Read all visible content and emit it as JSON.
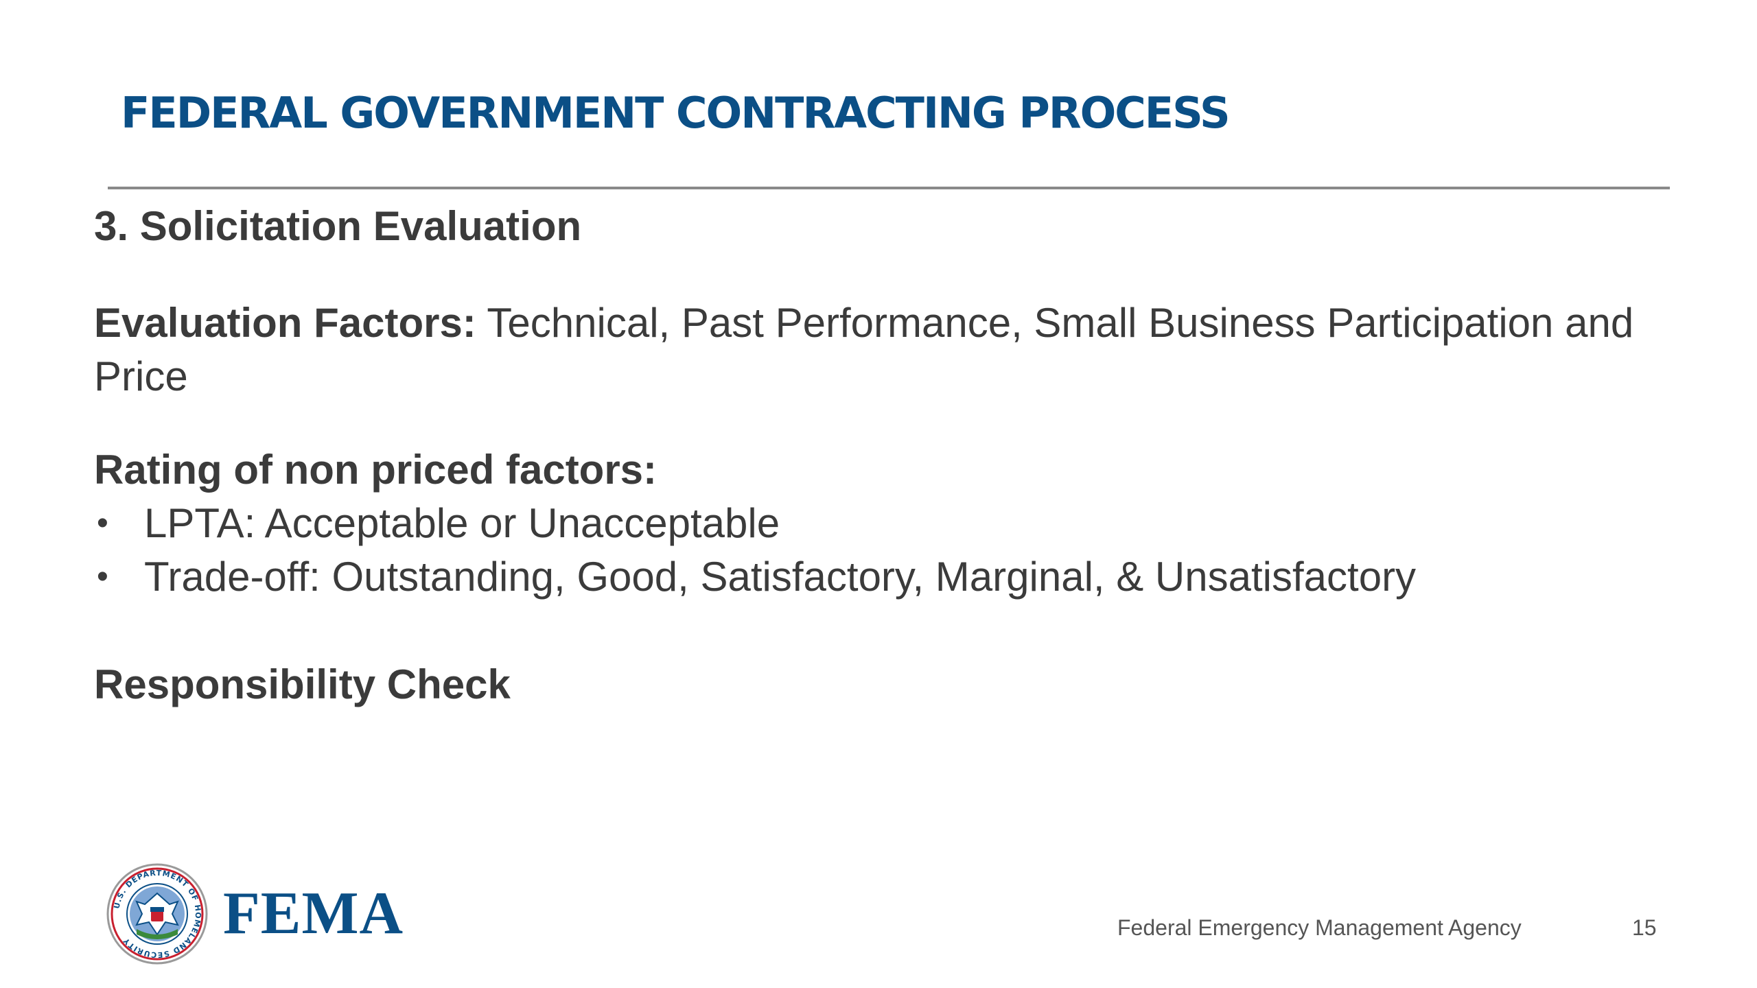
{
  "slide": {
    "title": "FEDERAL GOVERNMENT CONTRACTING PROCESS",
    "section_heading": "3. Solicitation Evaluation",
    "evaluation_factors": {
      "label": "Evaluation Factors:",
      "text": " Technical, Past Performance, Small Business Participation and Price"
    },
    "rating": {
      "heading": "Rating of non priced factors:",
      "bullets": [
        "LPTA: Acceptable or Unacceptable",
        "Trade-off: Outstanding, Good, Satisfactory, Marginal, & Unsatisfactory"
      ]
    },
    "responsibility": "Responsibility Check"
  },
  "footer": {
    "logo_text": "FEMA",
    "seal_text": "U.S. DEPARTMENT OF HOMELAND SECURITY",
    "agency": "Federal Emergency Management Agency",
    "page_number": "15"
  },
  "colors": {
    "title": "#0b4f86",
    "body_text": "#3b3b3b",
    "rule": "#8a8a8a",
    "seal_ring": "#c8202f",
    "seal_blue": "#0b4f86"
  },
  "icons": {
    "seal": "dhs-seal-icon",
    "bullet": "bullet-dot-icon"
  }
}
